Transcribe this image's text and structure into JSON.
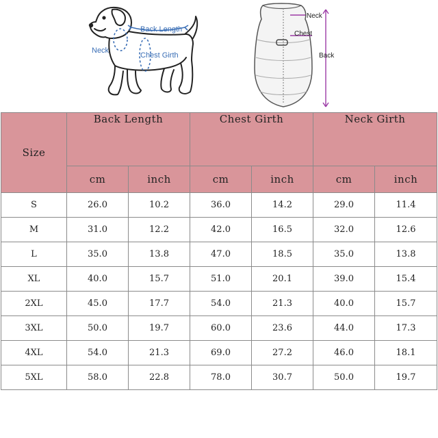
{
  "illustration": {
    "dog_labels": {
      "back_length": "Back Length",
      "neck": "Neck",
      "chest_girth": "Chest Girth"
    },
    "coat_labels": {
      "neck": "Neck",
      "chest": "Chest",
      "back": "Back"
    },
    "colors": {
      "dog_arrow": "#3b6fb6",
      "coat_arrow": "#9b3aa5"
    }
  },
  "table": {
    "size_header": "Size",
    "groups": [
      "Back Length",
      "Chest Girth",
      "Neck Girth"
    ],
    "units": [
      "cm",
      "inch",
      "cm",
      "inch",
      "cm",
      "inch"
    ],
    "header_color": "#d9959a",
    "rows": [
      {
        "size": "S",
        "values": [
          "26.0",
          "10.2",
          "36.0",
          "14.2",
          "29.0",
          "11.4"
        ]
      },
      {
        "size": "M",
        "values": [
          "31.0",
          "12.2",
          "42.0",
          "16.5",
          "32.0",
          "12.6"
        ]
      },
      {
        "size": "L",
        "values": [
          "35.0",
          "13.8",
          "47.0",
          "18.5",
          "35.0",
          "13.8"
        ]
      },
      {
        "size": "XL",
        "values": [
          "40.0",
          "15.7",
          "51.0",
          "20.1",
          "39.0",
          "15.4"
        ]
      },
      {
        "size": "2XL",
        "values": [
          "45.0",
          "17.7",
          "54.0",
          "21.3",
          "40.0",
          "15.7"
        ]
      },
      {
        "size": "3XL",
        "values": [
          "50.0",
          "19.7",
          "60.0",
          "23.6",
          "44.0",
          "17.3"
        ]
      },
      {
        "size": "4XL",
        "values": [
          "54.0",
          "21.3",
          "69.0",
          "27.2",
          "46.0",
          "18.1"
        ]
      },
      {
        "size": "5XL",
        "values": [
          "58.0",
          "22.8",
          "78.0",
          "30.7",
          "50.0",
          "19.7"
        ]
      }
    ]
  }
}
